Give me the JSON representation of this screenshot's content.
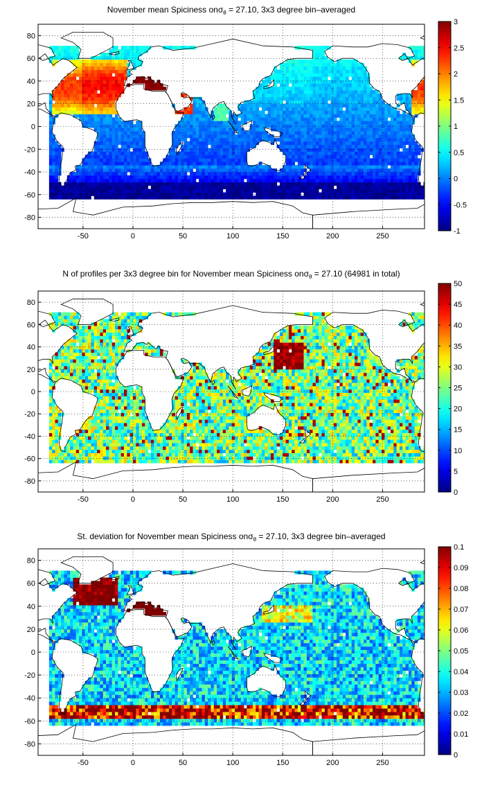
{
  "chart_data": [
    {
      "type": "heatmap",
      "title_parts": [
        "November mean Spiciness on",
        "σ",
        "θ",
        " = 27.10, 3x3 degree bin–averaged"
      ],
      "xlim": [
        -95,
        292
      ],
      "ylim": [
        -90,
        90
      ],
      "xticks": [
        -50,
        0,
        50,
        100,
        150,
        200,
        250
      ],
      "yticks": [
        -80,
        -60,
        -40,
        -20,
        0,
        20,
        40,
        60,
        80
      ],
      "grid": true,
      "colorbar": {
        "range": [
          -1,
          3
        ],
        "ticks": [
          -1,
          -0.5,
          0,
          0.5,
          1,
          1.5,
          2,
          2.5,
          3
        ],
        "tick_labels": [
          "-1",
          "-0.5",
          "0",
          "0.5",
          "1",
          "1.5",
          "2",
          "2.5",
          "3"
        ],
        "colormap": "jet"
      },
      "bin_size_deg": 3,
      "field": "spice"
    },
    {
      "type": "heatmap",
      "title_parts": [
        "N of profiles per 3x3 degree bin for November mean Spiciness on",
        "σ",
        "θ",
        " = 27.10 (64981 in total)"
      ],
      "xlim": [
        -95,
        292
      ],
      "ylim": [
        -90,
        90
      ],
      "xticks": [
        -50,
        0,
        50,
        100,
        150,
        200,
        250
      ],
      "yticks": [
        -80,
        -60,
        -40,
        -20,
        0,
        20,
        40,
        60,
        80
      ],
      "grid": true,
      "colorbar": {
        "range": [
          0,
          50
        ],
        "ticks": [
          0,
          5,
          10,
          15,
          20,
          25,
          30,
          35,
          40,
          45,
          50
        ],
        "tick_labels": [
          "0",
          "5",
          "10",
          "15",
          "20",
          "25",
          "30",
          "35",
          "40",
          "45",
          "50"
        ],
        "colormap": "jet"
      },
      "bin_size_deg": 3,
      "field": "count"
    },
    {
      "type": "heatmap",
      "title_parts": [
        "St. deviation for November mean Spiciness on",
        "σ",
        "θ",
        " = 27.10, 3x3 degree bin–averaged"
      ],
      "xlim": [
        -95,
        292
      ],
      "ylim": [
        -90,
        90
      ],
      "xticks": [
        -50,
        0,
        50,
        100,
        150,
        200,
        250
      ],
      "yticks": [
        -80,
        -60,
        -40,
        -20,
        0,
        20,
        40,
        60,
        80
      ],
      "grid": true,
      "colorbar": {
        "range": [
          0,
          0.1
        ],
        "ticks": [
          0,
          0.01,
          0.02,
          0.03,
          0.04,
          0.05,
          0.06,
          0.07,
          0.08,
          0.09,
          0.1
        ],
        "tick_labels": [
          "0",
          "0.01",
          "0.02",
          "0.03",
          "0.04",
          "0.05",
          "0.06",
          "0.07",
          "0.08",
          "0.09",
          "0.1"
        ],
        "colormap": "jet"
      },
      "bin_size_deg": 3,
      "field": "std"
    }
  ]
}
